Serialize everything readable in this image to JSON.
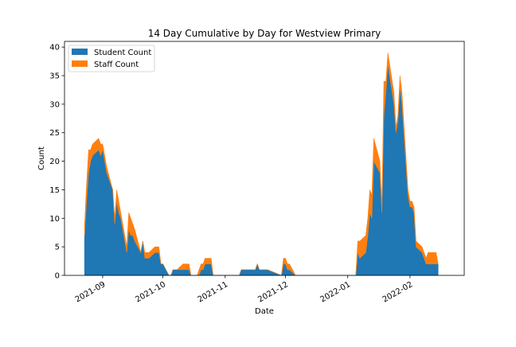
{
  "chart_data": {
    "type": "area",
    "stacked": true,
    "title": "14 Day Cumulative by Day for Westview Primary",
    "xlabel": "Date",
    "ylabel": "Count",
    "xlim": [
      "2021-08-13",
      "2022-02-28"
    ],
    "ylim": [
      0,
      41
    ],
    "x_ticks": [
      "2021-09",
      "2021-10",
      "2021-11",
      "2021-12",
      "2022-01",
      "2022-02"
    ],
    "x_tick_dates": [
      "2021-09-01",
      "2021-10-01",
      "2021-11-01",
      "2021-12-01",
      "2022-01-01",
      "2022-02-01"
    ],
    "y_ticks": [
      0,
      5,
      10,
      15,
      20,
      25,
      30,
      35,
      40
    ],
    "grid": false,
    "legend_position": "upper-left",
    "x": [
      "2021-08-23",
      "2021-08-24",
      "2021-08-25",
      "2021-08-26",
      "2021-08-27",
      "2021-08-30",
      "2021-08-31",
      "2021-09-01",
      "2021-09-02",
      "2021-09-03",
      "2021-09-06",
      "2021-09-07",
      "2021-09-08",
      "2021-09-09",
      "2021-09-10",
      "2021-09-13",
      "2021-09-14",
      "2021-09-15",
      "2021-09-16",
      "2021-09-17",
      "2021-09-20",
      "2021-09-21",
      "2021-09-22",
      "2021-09-23",
      "2021-09-24",
      "2021-09-27",
      "2021-09-28",
      "2021-09-29",
      "2021-09-30",
      "2021-10-01",
      "2021-10-04",
      "2021-10-05",
      "2021-10-06",
      "2021-10-07",
      "2021-10-08",
      "2021-10-11",
      "2021-10-12",
      "2021-10-13",
      "2021-10-14",
      "2021-10-15",
      "2021-10-18",
      "2021-10-19",
      "2021-10-20",
      "2021-10-21",
      "2021-10-22",
      "2021-10-25",
      "2021-10-26",
      "2021-10-27",
      "2021-10-28",
      "2021-10-29",
      "2021-11-01",
      "2021-11-08",
      "2021-11-09",
      "2021-11-15",
      "2021-11-16",
      "2021-11-17",
      "2021-11-18",
      "2021-11-19",
      "2021-11-22",
      "2021-11-29",
      "2021-11-30",
      "2021-12-01",
      "2021-12-02",
      "2021-12-03",
      "2021-12-06",
      "2021-12-07",
      "2021-12-08",
      "2022-01-05",
      "2022-01-06",
      "2022-01-07",
      "2022-01-10",
      "2022-01-11",
      "2022-01-12",
      "2022-01-13",
      "2022-01-14",
      "2022-01-17",
      "2022-01-18",
      "2022-01-19",
      "2022-01-20",
      "2022-01-21",
      "2022-01-24",
      "2022-01-25",
      "2022-01-26",
      "2022-01-27",
      "2022-01-28",
      "2022-01-31",
      "2022-02-01",
      "2022-02-02",
      "2022-02-03",
      "2022-02-04",
      "2022-02-07",
      "2022-02-08",
      "2022-02-09",
      "2022-02-10",
      "2022-02-11",
      "2022-02-14",
      "2022-02-15"
    ],
    "series": [
      {
        "name": "Student Count",
        "color": "#1f77b4",
        "values": [
          7,
          13,
          18,
          20,
          21,
          22,
          21,
          22,
          20,
          18,
          15,
          9,
          13,
          11,
          10,
          4,
          8,
          7,
          7,
          6,
          4,
          6,
          3,
          3,
          3,
          4,
          4,
          4,
          2,
          2,
          0,
          0,
          1,
          1,
          1,
          1,
          1,
          1,
          1,
          0,
          0,
          0,
          1,
          1,
          2,
          2,
          0,
          0,
          0,
          0,
          0,
          0,
          1,
          1,
          1,
          2,
          1,
          1,
          1,
          0,
          2,
          2,
          1,
          1,
          0,
          0,
          0,
          0,
          4,
          3,
          4,
          7,
          11,
          10,
          20,
          18,
          11,
          28,
          32,
          37,
          30,
          25,
          27,
          33,
          30,
          14,
          12,
          12,
          11,
          5,
          4,
          3,
          2,
          2,
          2,
          2,
          2
        ]
      },
      {
        "name": "Staff Count",
        "color": "#ff7f0e",
        "values": [
          2,
          3,
          4,
          2,
          2,
          2,
          2,
          1,
          1,
          1,
          0,
          1,
          2,
          2,
          1,
          1,
          3,
          3,
          2,
          2,
          0,
          0,
          1,
          1,
          1,
          1,
          1,
          1,
          0,
          0,
          0,
          0,
          0,
          0,
          0,
          1,
          1,
          1,
          1,
          0,
          0,
          1,
          1,
          1,
          1,
          1,
          0,
          0,
          0,
          0,
          0,
          0,
          0,
          0,
          0,
          0,
          0,
          0,
          0,
          0,
          1,
          1,
          1,
          1,
          0,
          0,
          0,
          0,
          2,
          3,
          3,
          3,
          4,
          4,
          4,
          2,
          1,
          6,
          2,
          2,
          2,
          1,
          1,
          2,
          2,
          1,
          1,
          1,
          1,
          1,
          1,
          1,
          1,
          2,
          2,
          2,
          0
        ]
      }
    ]
  }
}
